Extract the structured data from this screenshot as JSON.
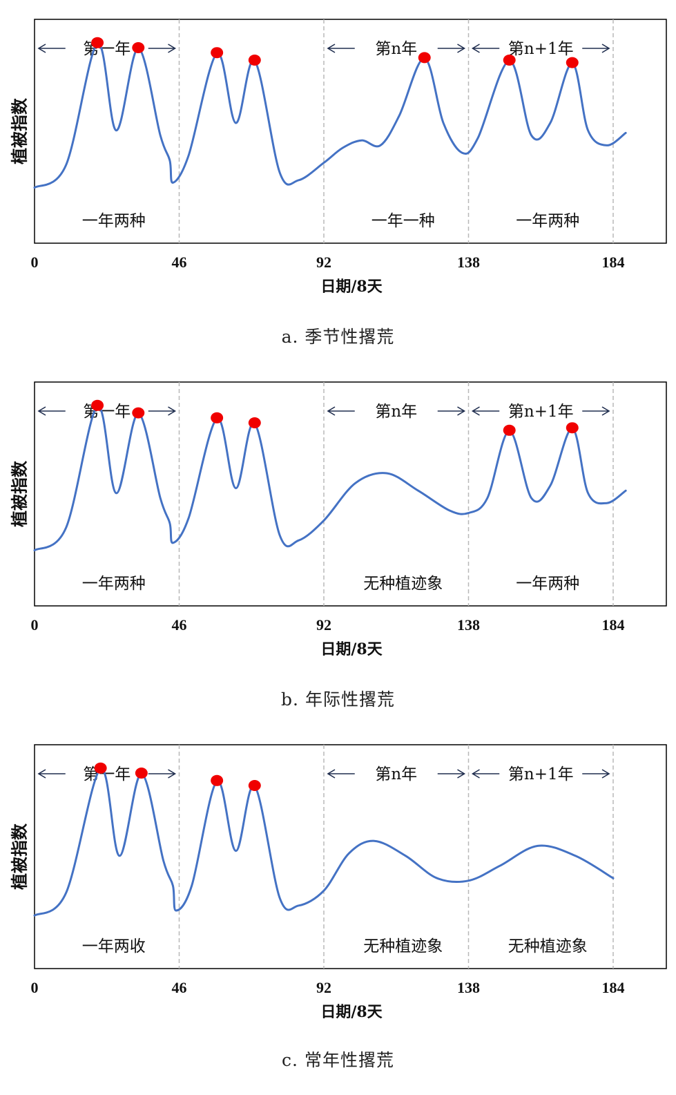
{
  "chart_data": [
    {
      "type": "line",
      "ylabel": "植被指数",
      "xlabel": "日期/8天",
      "x_ticks": [
        "0",
        "46",
        "92",
        "138",
        "184"
      ],
      "xlim": [
        0,
        184
      ],
      "ylim": [
        0,
        1
      ],
      "period_separators": [
        46,
        92,
        138,
        184
      ],
      "periods": [
        {
          "label": "第一年",
          "start": 0,
          "end": 46
        },
        {
          "label": "第n年",
          "start": 92,
          "end": 138
        },
        {
          "label": "第n+1年",
          "start": 138,
          "end": 184
        }
      ],
      "annotations": [
        {
          "label": "一年两种",
          "x": 23
        },
        {
          "label": "一年一种",
          "x": 115
        },
        {
          "label": "一年两种",
          "x": 161
        }
      ],
      "series": [
        {
          "values": [
            [
              0,
              0.19
            ],
            [
              10,
              0.28
            ],
            [
              20,
              0.77
            ],
            [
              26,
              0.42
            ],
            [
              33,
              0.75
            ],
            [
              40,
              0.4
            ],
            [
              43,
              0.3
            ],
            [
              44,
              0.21
            ],
            [
              49,
              0.32
            ],
            [
              58,
              0.73
            ],
            [
              64,
              0.45
            ],
            [
              70,
              0.7
            ],
            [
              78,
              0.25
            ],
            [
              84,
              0.22
            ],
            [
              92,
              0.29
            ],
            [
              98,
              0.35
            ],
            [
              104,
              0.38
            ],
            [
              110,
              0.36
            ],
            [
              116,
              0.48
            ],
            [
              124,
              0.71
            ],
            [
              130,
              0.45
            ],
            [
              136,
              0.33
            ],
            [
              141,
              0.39
            ],
            [
              151,
              0.7
            ],
            [
              158,
              0.4
            ],
            [
              164,
              0.45
            ],
            [
              171,
              0.69
            ],
            [
              176,
              0.42
            ],
            [
              182,
              0.36
            ],
            [
              188,
              0.41
            ]
          ]
        }
      ],
      "peak_markers": [
        [
          20,
          0.77
        ],
        [
          33,
          0.75
        ],
        [
          58,
          0.73
        ],
        [
          70,
          0.7
        ],
        [
          124,
          0.71
        ],
        [
          151,
          0.7
        ],
        [
          171,
          0.69
        ]
      ],
      "caption": "a. 季节性撂荒"
    },
    {
      "type": "line",
      "ylabel": "植被指数",
      "xlabel": "日期/8天",
      "x_ticks": [
        "0",
        "46",
        "92",
        "138",
        "184"
      ],
      "xlim": [
        0,
        184
      ],
      "ylim": [
        0,
        1
      ],
      "period_separators": [
        46,
        92,
        138,
        184
      ],
      "periods": [
        {
          "label": "第一年",
          "start": 0,
          "end": 46
        },
        {
          "label": "第n年",
          "start": 92,
          "end": 138
        },
        {
          "label": "第n+1年",
          "start": 138,
          "end": 184
        }
      ],
      "annotations": [
        {
          "label": "一年两种",
          "x": 23
        },
        {
          "label": "无种植迹象",
          "x": 115
        },
        {
          "label": "一年两种",
          "x": 161
        }
      ],
      "series": [
        {
          "values": [
            [
              0,
              0.19
            ],
            [
              10,
              0.28
            ],
            [
              20,
              0.77
            ],
            [
              26,
              0.42
            ],
            [
              33,
              0.74
            ],
            [
              40,
              0.4
            ],
            [
              43,
              0.3
            ],
            [
              44,
              0.22
            ],
            [
              49,
              0.32
            ],
            [
              58,
              0.72
            ],
            [
              64,
              0.44
            ],
            [
              70,
              0.7
            ],
            [
              78,
              0.25
            ],
            [
              84,
              0.23
            ],
            [
              92,
              0.31
            ],
            [
              102,
              0.46
            ],
            [
              112,
              0.5
            ],
            [
              122,
              0.43
            ],
            [
              132,
              0.35
            ],
            [
              138,
              0.34
            ],
            [
              144,
              0.4
            ],
            [
              151,
              0.67
            ],
            [
              158,
              0.4
            ],
            [
              164,
              0.45
            ],
            [
              171,
              0.68
            ],
            [
              176,
              0.42
            ],
            [
              182,
              0.38
            ],
            [
              188,
              0.43
            ]
          ]
        }
      ],
      "peak_markers": [
        [
          20,
          0.77
        ],
        [
          33,
          0.74
        ],
        [
          58,
          0.72
        ],
        [
          70,
          0.7
        ],
        [
          151,
          0.67
        ],
        [
          171,
          0.68
        ]
      ],
      "caption": "b. 年际性撂荒"
    },
    {
      "type": "line",
      "ylabel": "植被指数",
      "xlabel": "日期/8天",
      "x_ticks": [
        "0",
        "46",
        "92",
        "138",
        "184"
      ],
      "xlim": [
        0,
        184
      ],
      "ylim": [
        0,
        1
      ],
      "period_separators": [
        46,
        92,
        138,
        184
      ],
      "periods": [
        {
          "label": "第一年",
          "start": 0,
          "end": 46
        },
        {
          "label": "第n年",
          "start": 92,
          "end": 138
        },
        {
          "label": "第n+1年",
          "start": 138,
          "end": 184
        }
      ],
      "annotations": [
        {
          "label": "一年两收",
          "x": 23
        },
        {
          "label": "无种植迹象",
          "x": 115
        },
        {
          "label": "无种植迹象",
          "x": 161
        }
      ],
      "series": [
        {
          "values": [
            [
              0,
              0.18
            ],
            [
              10,
              0.27
            ],
            [
              21,
              0.77
            ],
            [
              27,
              0.42
            ],
            [
              34,
              0.75
            ],
            [
              41,
              0.4
            ],
            [
              44,
              0.3
            ],
            [
              45,
              0.2
            ],
            [
              50,
              0.3
            ],
            [
              58,
              0.72
            ],
            [
              64,
              0.44
            ],
            [
              70,
              0.7
            ],
            [
              78,
              0.25
            ],
            [
              84,
              0.22
            ],
            [
              92,
              0.28
            ],
            [
              100,
              0.43
            ],
            [
              108,
              0.48
            ],
            [
              118,
              0.42
            ],
            [
              128,
              0.33
            ],
            [
              138,
              0.32
            ],
            [
              148,
              0.38
            ],
            [
              160,
              0.46
            ],
            [
              172,
              0.42
            ],
            [
              184,
              0.33
            ]
          ]
        }
      ],
      "peak_markers": [
        [
          21,
          0.77
        ],
        [
          34,
          0.75
        ],
        [
          58,
          0.72
        ],
        [
          70,
          0.7
        ]
      ],
      "caption": "c. 常年性撂荒"
    }
  ]
}
